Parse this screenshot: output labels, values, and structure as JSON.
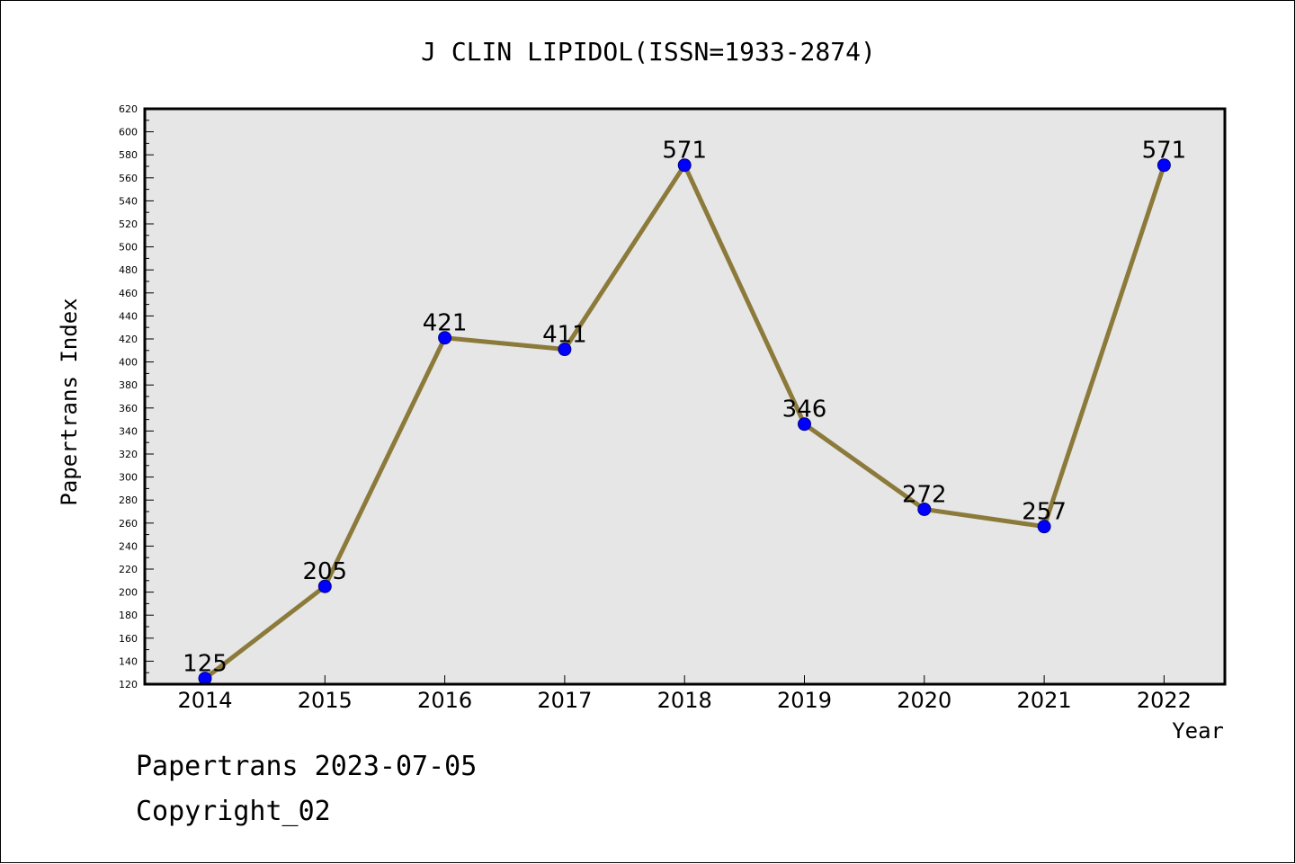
{
  "chart_data": {
    "type": "line",
    "title": "J CLIN LIPIDOL(ISSN=1933-2874)",
    "xlabel": "Year",
    "ylabel": "Papertrans Index",
    "categories": [
      "2014",
      "2015",
      "2016",
      "2017",
      "2018",
      "2019",
      "2020",
      "2021",
      "2022"
    ],
    "values": [
      125,
      205,
      421,
      411,
      571,
      346,
      272,
      257,
      571
    ],
    "data_labels": [
      "125",
      "205",
      "421",
      "411",
      "571",
      "346",
      "272",
      "257",
      "571"
    ],
    "ylim": [
      120,
      620
    ],
    "ytick_step": 20,
    "grid": false,
    "line_color": "#8b7a3a",
    "marker_color": "#0000ff",
    "plot_background": "#e6e6e6"
  },
  "footer": {
    "line1": "Papertrans 2023-07-05",
    "line2": "Copyright_02"
  }
}
